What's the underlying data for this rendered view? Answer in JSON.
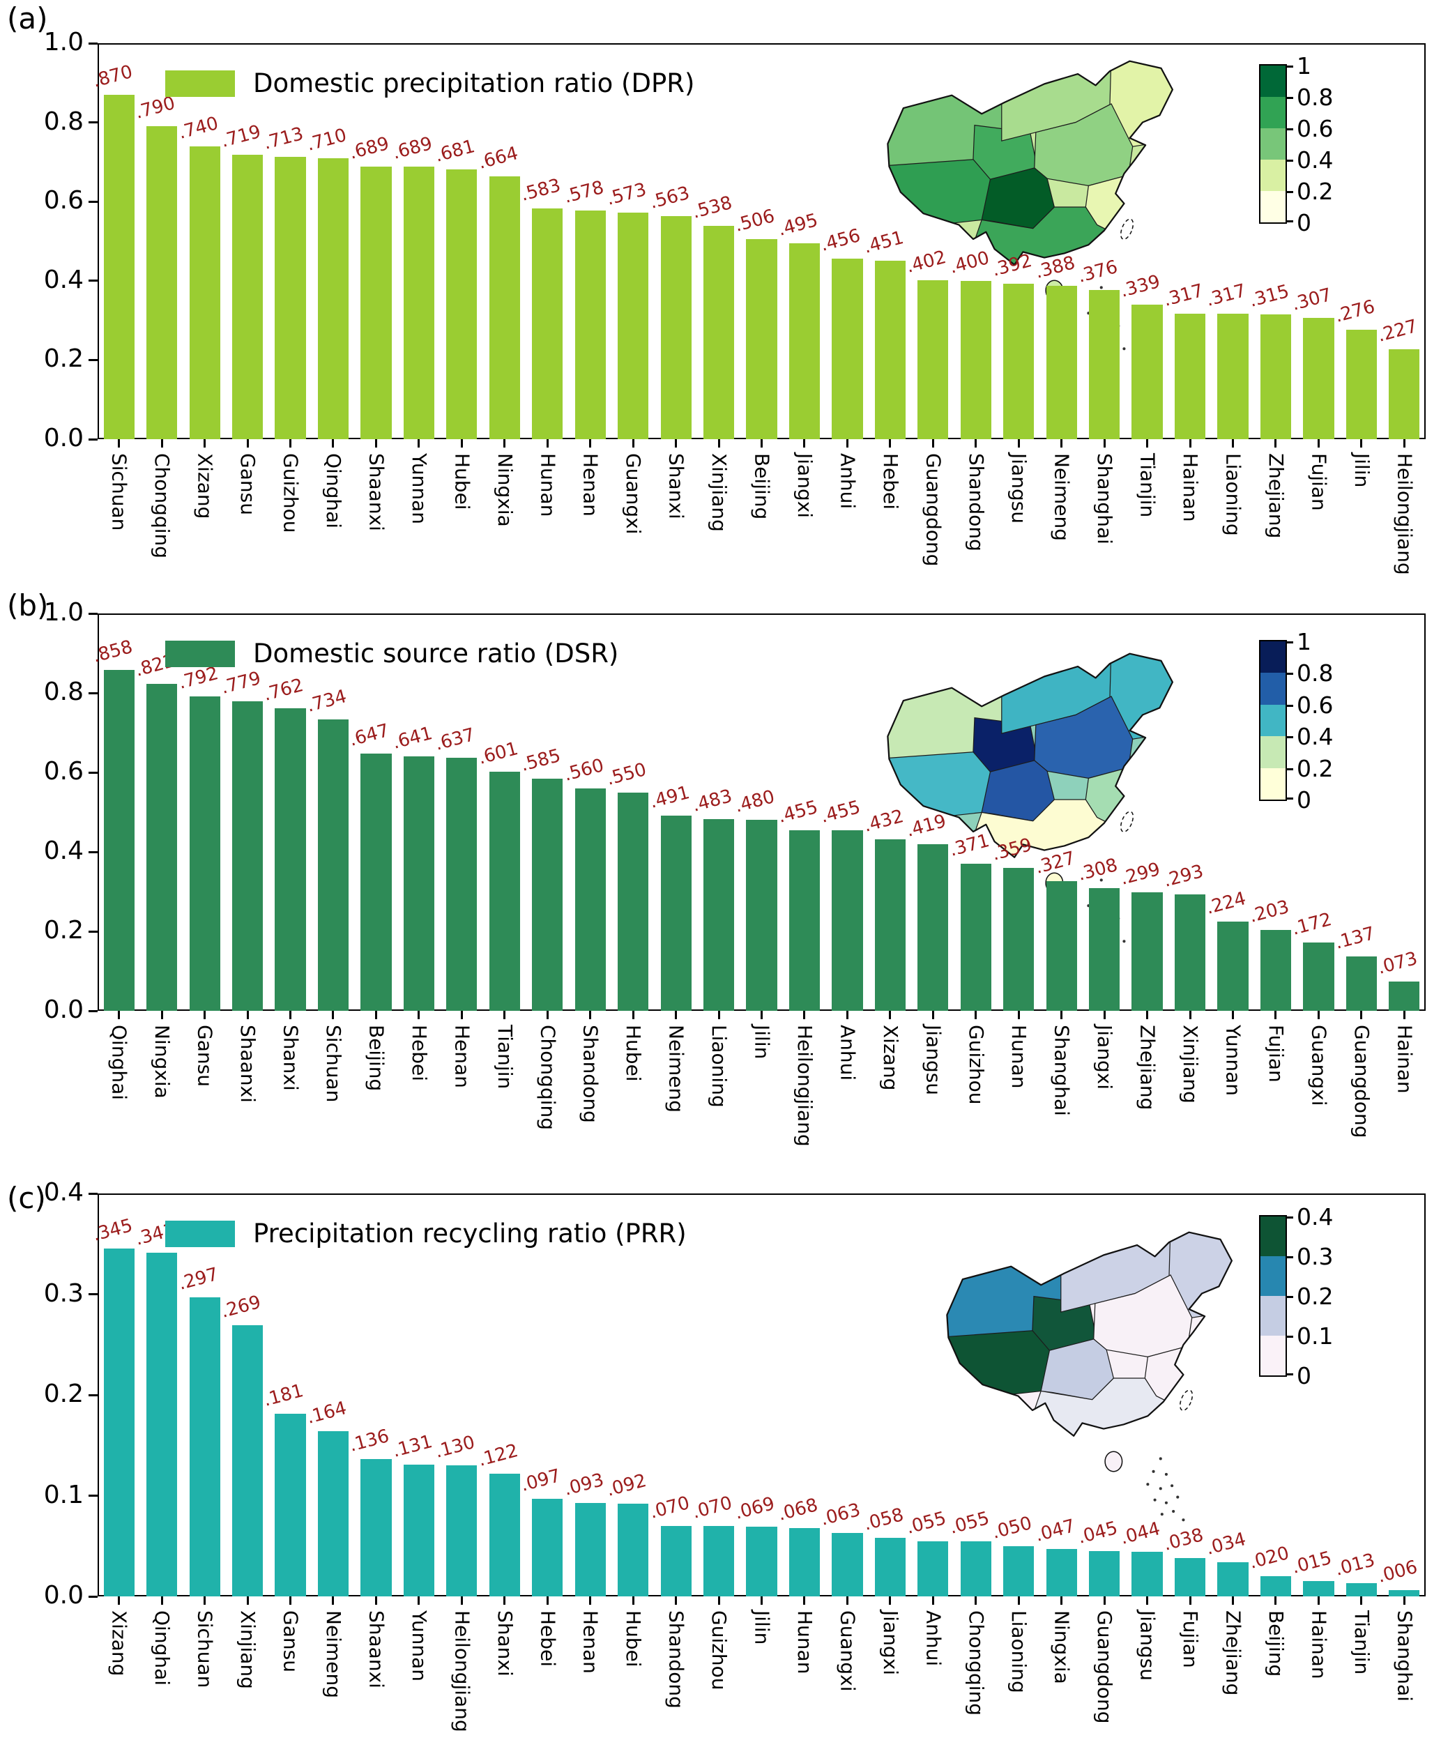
{
  "figure": {
    "background": "#ffffff",
    "value_label_color": "#9b1c1c",
    "panels": [
      {
        "panel_label": "(a)",
        "legend_label": "Domestic precipitation ratio (DPR)",
        "bar_color": "#9acd32",
        "ymax": 1.0,
        "yticks": [
          "1.0",
          "0.8",
          "0.6",
          "0.4",
          "0.2",
          "0.0"
        ],
        "colorbar": {
          "tick_labels": [
            "1",
            "0.8",
            "0.6",
            "0.4",
            "0.2",
            "0"
          ],
          "segment_colors_top_to_bottom": [
            "#006837",
            "#31a354",
            "#78c679",
            "#d9f0a3",
            "#ffffe5"
          ]
        },
        "map_colors": {
          "base": "#c9e9a0",
          "xinjiang": "#74c476",
          "tibet": "#2f9e52",
          "qinghai": "#41ab5d",
          "neimeng": "#a8dc8e",
          "northeast": "#e2f3a8",
          "northchina": "#90d183",
          "sichuan": "#035c27",
          "east": "#e8f6b2",
          "south": "#3ba558",
          "hainan": "#cdeca5"
        }
      },
      {
        "panel_label": "(b)",
        "legend_label": "Domestic source ratio (DSR)",
        "bar_color": "#2e8b57",
        "ymax": 1.0,
        "yticks": [
          "1.0",
          "0.8",
          "0.6",
          "0.4",
          "0.2",
          "0.0"
        ],
        "colorbar": {
          "tick_labels": [
            "1",
            "0.8",
            "0.6",
            "0.4",
            "0.2",
            "0"
          ],
          "segment_colors_top_to_bottom": [
            "#081d58",
            "#225ea8",
            "#41b6c4",
            "#c7e9b4",
            "#ffffd9"
          ]
        },
        "map_colors": {
          "base": "#8ed1bb",
          "xinjiang": "#c7e9b4",
          "tibet": "#45b8c6",
          "qinghai": "#0a2168",
          "neimeng": "#3fb4c3",
          "northeast": "#41b6c4",
          "northchina": "#2a63ae",
          "sichuan": "#2456a4",
          "east": "#a5ddb2",
          "south": "#fdfcd2",
          "hainan": "#fdfcd2"
        }
      },
      {
        "panel_label": "(c)",
        "legend_label": "Precipitation recycling ratio (PRR)",
        "bar_color": "#20b2aa",
        "ymax": 0.4,
        "yticks": [
          "0.4",
          "0.3",
          "0.2",
          "0.1",
          "0.0"
        ],
        "colorbar": {
          "tick_labels": [
            "0.4",
            "0.3",
            "0.2",
            "0.1",
            "0"
          ],
          "segment_colors_top_to_bottom": [
            "#0e5434",
            "#2787b0",
            "#c5cde3",
            "#faf2f8"
          ]
        },
        "map_colors": {
          "base": "#f8f1f7",
          "xinjiang": "#2b89b3",
          "tibet": "#0e5434",
          "qinghai": "#11563a",
          "neimeng": "#ccd2e6",
          "northeast": "#ccd2e6",
          "northchina": "#f8f1f7",
          "sichuan": "#c5cde3",
          "east": "#f8f1f7",
          "south": "#e7e9f2",
          "hainan": "#f8f1f7"
        }
      }
    ]
  },
  "chart_data": [
    {
      "type": "bar",
      "title": "Domestic precipitation ratio (DPR)",
      "legend": "Domestic precipitation ratio (DPR)",
      "xlabel": "",
      "ylabel": "",
      "ylim": [
        0,
        1.0
      ],
      "ytick_values": [
        0.0,
        0.2,
        0.4,
        0.6,
        0.8,
        1.0
      ],
      "legend_position": "upper left inside plot",
      "inset": "China province choropleth map with discrete colorbar 0-1",
      "colorbar_ticks": [
        1,
        0.8,
        0.6,
        0.4,
        0.2,
        0
      ],
      "categories": [
        "Sichuan",
        "Chongqing",
        "Xizang",
        "Gansu",
        "Guizhou",
        "Qinghai",
        "Shaanxi",
        "Yunnan",
        "Hubei",
        "Ningxia",
        "Hunan",
        "Henan",
        "Guangxi",
        "Shanxi",
        "Xinjiang",
        "Beijing",
        "Jiangxi",
        "Anhui",
        "Hebei",
        "Guangdong",
        "Shandong",
        "Jiangsu",
        "Neimeng",
        "Shanghai",
        "Tianjin",
        "Hainan",
        "Liaoning",
        "Zhejiang",
        "Fujian",
        "Jilin",
        "Heilongjiang"
      ],
      "values": [
        0.87,
        0.79,
        0.74,
        0.719,
        0.713,
        0.71,
        0.689,
        0.689,
        0.681,
        0.664,
        0.583,
        0.578,
        0.573,
        0.563,
        0.538,
        0.506,
        0.495,
        0.456,
        0.451,
        0.402,
        0.4,
        0.392,
        0.388,
        0.376,
        0.339,
        0.317,
        0.317,
        0.315,
        0.307,
        0.276,
        0.227
      ],
      "bar_labels": [
        ".870",
        ".790",
        ".740",
        ".719",
        ".713",
        ".710",
        ".689",
        ".689",
        ".681",
        ".664",
        ".583",
        ".578",
        ".573",
        ".563",
        ".538",
        ".506",
        ".495",
        ".456",
        ".451",
        ".402",
        ".400",
        ".392",
        ".388",
        ".376",
        ".339",
        ".317",
        ".317",
        ".315",
        ".307",
        ".276",
        ".227"
      ]
    },
    {
      "type": "bar",
      "title": "Domestic source ratio (DSR)",
      "legend": "Domestic source ratio (DSR)",
      "xlabel": "",
      "ylabel": "",
      "ylim": [
        0,
        1.0
      ],
      "ytick_values": [
        0.0,
        0.2,
        0.4,
        0.6,
        0.8,
        1.0
      ],
      "legend_position": "upper left inside plot",
      "inset": "China province choropleth map with discrete colorbar 0-1",
      "colorbar_ticks": [
        1,
        0.8,
        0.6,
        0.4,
        0.2,
        0
      ],
      "categories": [
        "Qinghai",
        "Ningxia",
        "Gansu",
        "Shaanxi",
        "Shanxi",
        "Sichuan",
        "Beijing",
        "Hebei",
        "Henan",
        "Tianjin",
        "Chongqing",
        "Shandong",
        "Hubei",
        "Neimeng",
        "Liaoning",
        "Jilin",
        "Heilongjiang",
        "Anhui",
        "Xizang",
        "Jiangsu",
        "Guizhou",
        "Hunan",
        "Shanghai",
        "Jiangxi",
        "Zhejiang",
        "Xinjiang",
        "Yunnan",
        "Fujian",
        "Guangxi",
        "Guangdong",
        "Hainan"
      ],
      "values": [
        0.858,
        0.822,
        0.792,
        0.779,
        0.762,
        0.734,
        0.647,
        0.641,
        0.637,
        0.601,
        0.585,
        0.56,
        0.55,
        0.491,
        0.483,
        0.48,
        0.455,
        0.455,
        0.432,
        0.419,
        0.371,
        0.359,
        0.327,
        0.308,
        0.299,
        0.293,
        0.224,
        0.203,
        0.172,
        0.137,
        0.073
      ],
      "bar_labels": [
        ".858",
        ".822",
        ".792",
        ".779",
        ".762",
        ".734",
        ".647",
        ".641",
        ".637",
        ".601",
        ".585",
        ".560",
        ".550",
        ".491",
        ".483",
        ".480",
        ".455",
        ".455",
        ".432",
        ".419",
        ".371",
        ".359",
        ".327",
        ".308",
        ".299",
        ".293",
        ".224",
        ".203",
        ".172",
        ".137",
        ".073"
      ]
    },
    {
      "type": "bar",
      "title": "Precipitation recycling ratio (PRR)",
      "legend": "Precipitation recycling ratio (PRR)",
      "xlabel": "",
      "ylabel": "",
      "ylim": [
        0,
        0.4
      ],
      "ytick_values": [
        0.0,
        0.1,
        0.2,
        0.3,
        0.4
      ],
      "legend_position": "upper left inside plot",
      "inset": "China province choropleth map with discrete colorbar 0-0.4",
      "colorbar_ticks": [
        0.4,
        0.3,
        0.2,
        0.1,
        0
      ],
      "categories": [
        "Xizang",
        "Qinghai",
        "Sichuan",
        "Xinjiang",
        "Gansu",
        "Neimeng",
        "Shaanxi",
        "Yunnan",
        "Heilongjiang",
        "Shanxi",
        "Hebei",
        "Henan",
        "Hubei",
        "Shandong",
        "Guizhou",
        "Jilin",
        "Hunan",
        "Guangxi",
        "Jiangxi",
        "Anhui",
        "Chongqing",
        "Liaoning",
        "Ningxia",
        "Guangdong",
        "Jiangsu",
        "Fujian",
        "Zhejiang",
        "Beijing",
        "Hainan",
        "Tianjin",
        "Shanghai"
      ],
      "values": [
        0.345,
        0.341,
        0.297,
        0.269,
        0.181,
        0.164,
        0.136,
        0.131,
        0.13,
        0.122,
        0.097,
        0.093,
        0.092,
        0.07,
        0.07,
        0.069,
        0.068,
        0.063,
        0.058,
        0.055,
        0.055,
        0.05,
        0.047,
        0.045,
        0.044,
        0.038,
        0.034,
        0.02,
        0.015,
        0.013,
        0.006
      ],
      "bar_labels": [
        ".345",
        ".341",
        ".297",
        ".269",
        ".181",
        ".164",
        ".136",
        ".131",
        ".130",
        ".122",
        ".097",
        ".093",
        ".092",
        ".070",
        ".070",
        ".069",
        ".068",
        ".063",
        ".058",
        ".055",
        ".055",
        ".050",
        ".047",
        ".045",
        ".044",
        ".038",
        ".034",
        ".020",
        ".015",
        ".013",
        ".006"
      ]
    }
  ]
}
